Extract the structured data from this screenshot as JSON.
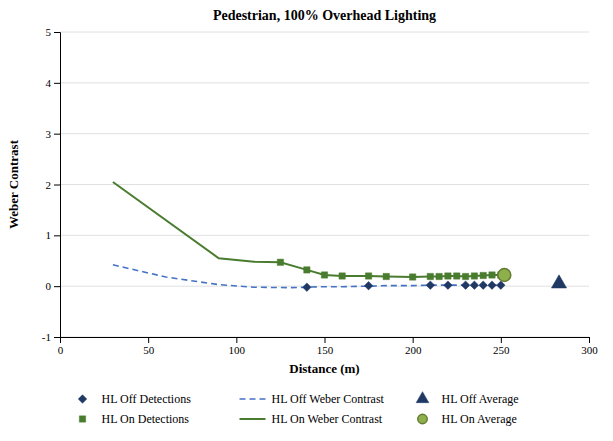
{
  "chart_data": {
    "type": "line",
    "title": "Pedestrian, 100% Overhead Lighting",
    "xlabel": "Distance (m)",
    "ylabel": "Weber Contrast",
    "xlim": [
      0,
      300
    ],
    "ylim": [
      -1,
      5
    ],
    "xticks": [
      0,
      50,
      100,
      150,
      200,
      250,
      300
    ],
    "yticks": [
      -1,
      0,
      1,
      2,
      3,
      4,
      5
    ],
    "grid": true,
    "legend": "bottom",
    "series": [
      {
        "name": "HL Off Detections",
        "type": "scatter",
        "marker": "diamond",
        "color": "#1f3864",
        "x": [
          140,
          175,
          210,
          220,
          230,
          235,
          240,
          245,
          250
        ],
        "values": [
          -0.02,
          0.01,
          0.02,
          0.02,
          0.02,
          0.02,
          0.02,
          0.02,
          0.02
        ]
      },
      {
        "name": "HL Off Weber Contrast",
        "type": "line",
        "line_style": "dashed",
        "color": "#4472c4",
        "x": [
          30,
          60,
          90,
          110,
          130,
          140,
          150,
          160,
          175,
          185,
          200,
          210,
          220,
          230,
          240,
          250
        ],
        "values": [
          0.42,
          0.18,
          0.03,
          -0.02,
          -0.03,
          -0.02,
          -0.01,
          -0.01,
          0.0,
          0.01,
          0.01,
          0.02,
          0.02,
          0.02,
          0.02,
          0.02
        ]
      },
      {
        "name": "HL Off Average",
        "type": "scatter",
        "marker": "triangle",
        "color": "#1f3864",
        "x": [
          283
        ],
        "values": [
          0.05
        ]
      },
      {
        "name": "HL On Detections",
        "type": "scatter",
        "marker": "square",
        "color": "#4a7c2f",
        "x": [
          125,
          140,
          150,
          160,
          175,
          185,
          200,
          210,
          215,
          220,
          225,
          230,
          235,
          240,
          245,
          250
        ],
        "values": [
          0.47,
          0.32,
          0.22,
          0.2,
          0.2,
          0.19,
          0.18,
          0.19,
          0.19,
          0.2,
          0.2,
          0.19,
          0.2,
          0.21,
          0.22,
          0.22
        ]
      },
      {
        "name": "HL On Weber Contrast",
        "type": "line",
        "line_style": "solid",
        "color": "#4a7c2f",
        "x": [
          30,
          90,
          110,
          125,
          140,
          150,
          160,
          175,
          185,
          200,
          210,
          215,
          220,
          225,
          230,
          235,
          240,
          245,
          250
        ],
        "values": [
          2.05,
          0.55,
          0.48,
          0.47,
          0.32,
          0.22,
          0.2,
          0.2,
          0.19,
          0.18,
          0.19,
          0.19,
          0.2,
          0.2,
          0.19,
          0.2,
          0.21,
          0.22,
          0.22
        ]
      },
      {
        "name": "HL On Average",
        "type": "scatter",
        "marker": "circle",
        "color": "#8db04a",
        "x": [
          252
        ],
        "values": [
          0.22
        ]
      }
    ]
  }
}
